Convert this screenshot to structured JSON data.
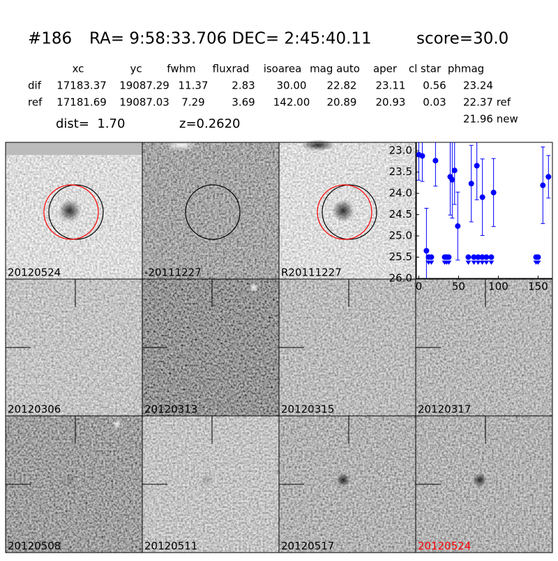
{
  "header": {
    "id": "#186",
    "coords": "RA= 9:58:33.706 DEC= 2:45:40.11",
    "score": "score=30.0"
  },
  "table": {
    "columns": [
      "xc",
      "yc",
      "fwhm",
      "fluxrad",
      "isoarea",
      "mag auto",
      "aper",
      "cl star",
      "phmag"
    ],
    "rows": [
      [
        "dif",
        "17183.37",
        "19087.29",
        "11.37",
        "2.83",
        "30.00",
        "22.82",
        "23.11",
        "0.56",
        "23.24"
      ],
      [
        "ref",
        "17181.69",
        "19087.03",
        "7.29",
        "3.69",
        "142.00",
        "20.89",
        "20.93",
        "0.03",
        "22.37 ref"
      ]
    ],
    "extra": "21.96 new"
  },
  "dist": "dist=  1.70",
  "z": "z=0.2620",
  "stamps": [
    {
      "label": "20120524"
    },
    {
      "label": "-20111227"
    },
    {
      "label": "R20111227"
    },
    {
      "label": "20120306"
    },
    {
      "label": "20120313"
    },
    {
      "label": "20120315"
    },
    {
      "label": "20120317"
    },
    {
      "label": "20120508"
    },
    {
      "label": "20120511"
    },
    {
      "label": "20120517"
    },
    {
      "label": "20120524",
      "color": "#ff0000"
    }
  ],
  "chart_data": {
    "type": "scatter",
    "xlim": [
      -3,
      168
    ],
    "ylim": [
      26.0,
      22.8
    ],
    "xticks": [
      0,
      50,
      100,
      150
    ],
    "yticks": [
      {
        "value": 23,
        "label": "23.0"
      },
      {
        "value": 23.5,
        "label": "23.5"
      },
      {
        "value": 24,
        "label": "24.0"
      },
      {
        "value": 24.5,
        "label": "24.5"
      },
      {
        "value": 25,
        "label": "25.0"
      },
      {
        "value": 25.5,
        "label": "25.5"
      },
      {
        "value": 26,
        "label": "26.0"
      }
    ],
    "series": [
      {
        "color": "#0000ff",
        "x": [
          0,
          4.4,
          9.6,
          21,
          39.5,
          42,
          45,
          49,
          66,
          73,
          80,
          94,
          156,
          163
        ],
        "values": [
          23.09,
          23.12,
          25.35,
          23.23,
          23.61,
          23.68,
          23.46,
          24.77,
          23.77,
          23.35,
          24.09,
          23.98,
          23.81,
          23.61
        ],
        "errors": [
          0.6,
          0.6,
          1.0,
          0.6,
          0.9,
          0.9,
          0.8,
          0.8,
          0.9,
          0.8,
          0.9,
          0.8,
          0.9,
          0.5
        ]
      },
      {
        "color": "#0000ff",
        "marker": "triangle-down",
        "x": [
          12.3,
          15.8,
          32.5,
          35,
          37.7,
          62.3,
          69.3,
          74.6,
          79.8,
          85,
          91.2,
          147.4,
          150
        ],
        "values": [
          25.5,
          25.5,
          25.5,
          25.5,
          25.5,
          25.5,
          25.5,
          25.5,
          25.5,
          25.5,
          25.5,
          25.5,
          25.5
        ]
      }
    ]
  }
}
